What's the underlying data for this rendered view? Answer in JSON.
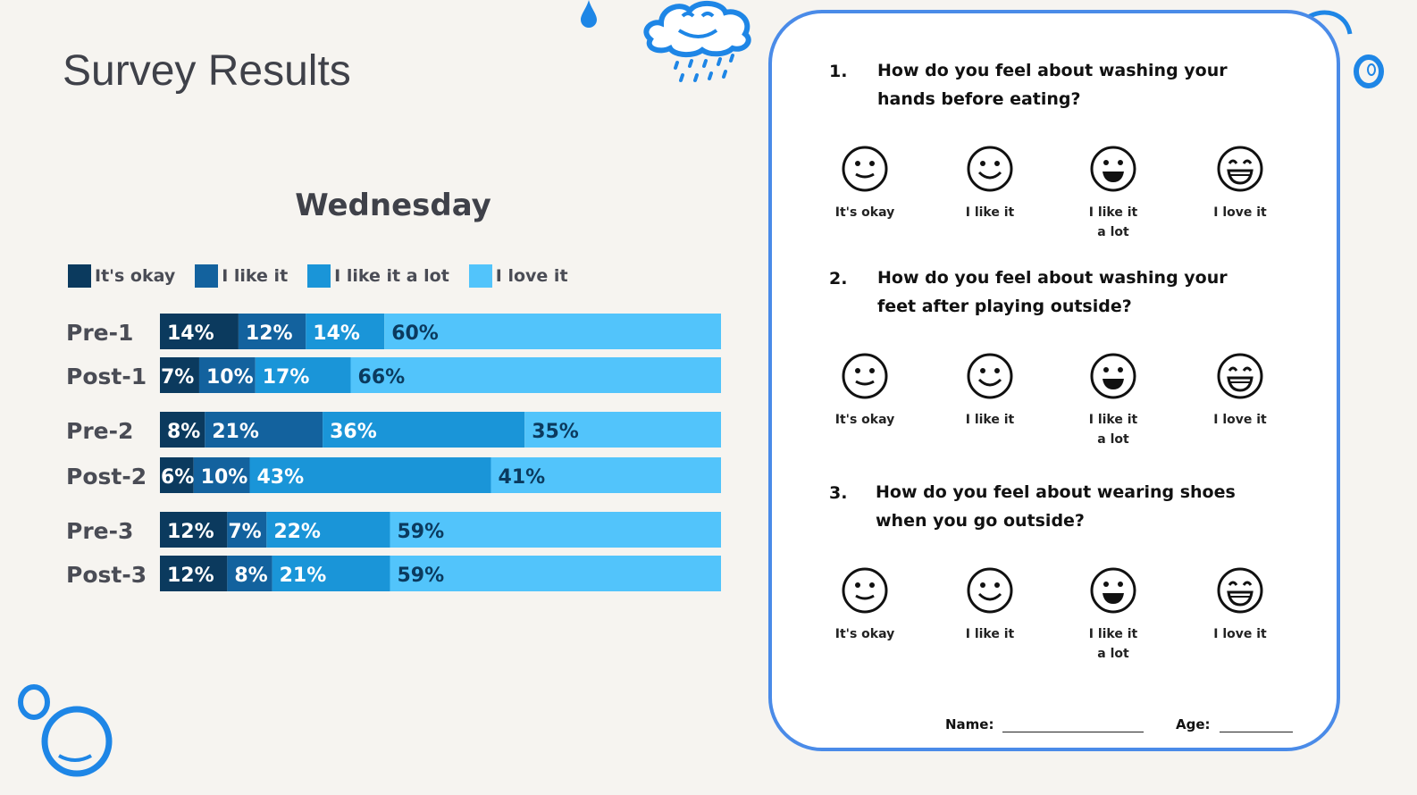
{
  "page": {
    "title": "Survey Results"
  },
  "colors": {
    "okay": "#0b3a5e",
    "like": "#13629e",
    "like_lot": "#1a95d8",
    "love": "#52c4fb",
    "accent": "#4a8be8"
  },
  "chart_data": {
    "type": "bar",
    "orientation": "horizontal",
    "stacked": true,
    "percent": true,
    "title": "Wednesday",
    "legend_position": "top-left",
    "categories": [
      "Pre-1",
      "Post-1",
      "Pre-2",
      "Post-2",
      "Pre-3",
      "Post-3"
    ],
    "series": [
      {
        "name": "It's okay",
        "values": [
          14,
          7,
          8,
          6,
          12,
          12
        ]
      },
      {
        "name": "I like it",
        "values": [
          12,
          10,
          21,
          10,
          7,
          8
        ]
      },
      {
        "name": "I like it a lot",
        "values": [
          14,
          17,
          36,
          43,
          22,
          21
        ]
      },
      {
        "name": "I love it",
        "values": [
          60,
          66,
          35,
          41,
          59,
          59
        ]
      }
    ],
    "xlim": [
      0,
      100
    ]
  },
  "worksheet": {
    "questions": [
      {
        "number": "1.",
        "text": "How do you feel about washing your hands before eating?",
        "options": [
          "It's okay",
          "I like it",
          "I like it\na lot",
          "I love it"
        ]
      },
      {
        "number": "2.",
        "text": "How do you feel about washing your feet after playing outside?",
        "options": [
          "It's okay",
          "I like it",
          "I like it\na lot",
          "I love it"
        ]
      },
      {
        "number": "3.",
        "text": "How do you feel about wearing shoes when you go outside?",
        "options": [
          "It's okay",
          "I like it",
          "I like it\na lot",
          "I love it"
        ]
      }
    ],
    "name_label": "Name:",
    "age_label": "Age:"
  }
}
